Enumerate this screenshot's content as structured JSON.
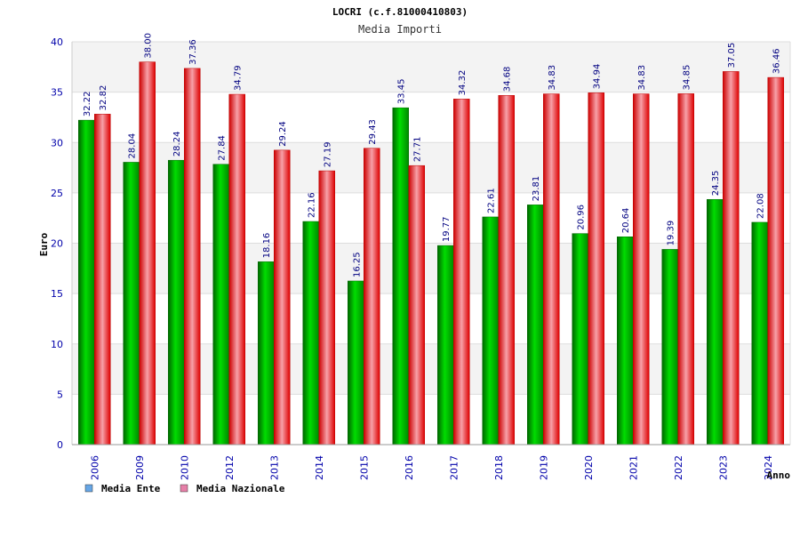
{
  "colors": {
    "ente": "#00b000",
    "nazionale": "#ee2233",
    "legend_ente": "#66a6e6",
    "legend_nazionale": "#e67fa8",
    "axis_text": "#0000aa",
    "value_label": "#000080"
  },
  "chart_data": {
    "type": "bar",
    "title": "LOCRI (c.f.81000410803)",
    "subtitle": "Media Importi",
    "xlabel": "Anno",
    "ylabel": "Euro",
    "ylim": [
      0,
      40
    ],
    "yticks": [
      0,
      5,
      10,
      15,
      20,
      25,
      30,
      35,
      40
    ],
    "grid": true,
    "legend_position": "bottom-left",
    "categories": [
      "2006",
      "2009",
      "2010",
      "2012",
      "2013",
      "2014",
      "2015",
      "2016",
      "2017",
      "2018",
      "2019",
      "2020",
      "2021",
      "2022",
      "2023",
      "2024"
    ],
    "series": [
      {
        "name": "Media Ente",
        "values": [
          32.22,
          28.04,
          28.24,
          27.84,
          18.16,
          22.16,
          16.25,
          33.45,
          19.77,
          22.61,
          23.81,
          20.96,
          20.64,
          19.39,
          24.35,
          22.08
        ],
        "labels": [
          "32.22",
          "28.04",
          "28.24",
          "27.84",
          "18.16",
          "22.16",
          "16.25",
          "33.45",
          "19.77",
          "22.61",
          "23.81",
          "20.96",
          "20.64",
          "19.39",
          "24.35",
          "22.08"
        ]
      },
      {
        "name": "Media Nazionale",
        "values": [
          32.82,
          38.0,
          37.36,
          34.79,
          29.24,
          27.19,
          29.43,
          27.71,
          34.32,
          34.68,
          34.83,
          34.94,
          34.83,
          34.85,
          37.05,
          36.46
        ],
        "labels": [
          "32.82",
          "38.00",
          "37.36",
          "34.79",
          "29.24",
          "27.19",
          "29.43",
          "27.71",
          "34.32",
          "34.68",
          "34.83",
          "34.94",
          "34.83",
          "34.85",
          "37.05",
          "36.46"
        ]
      }
    ]
  }
}
